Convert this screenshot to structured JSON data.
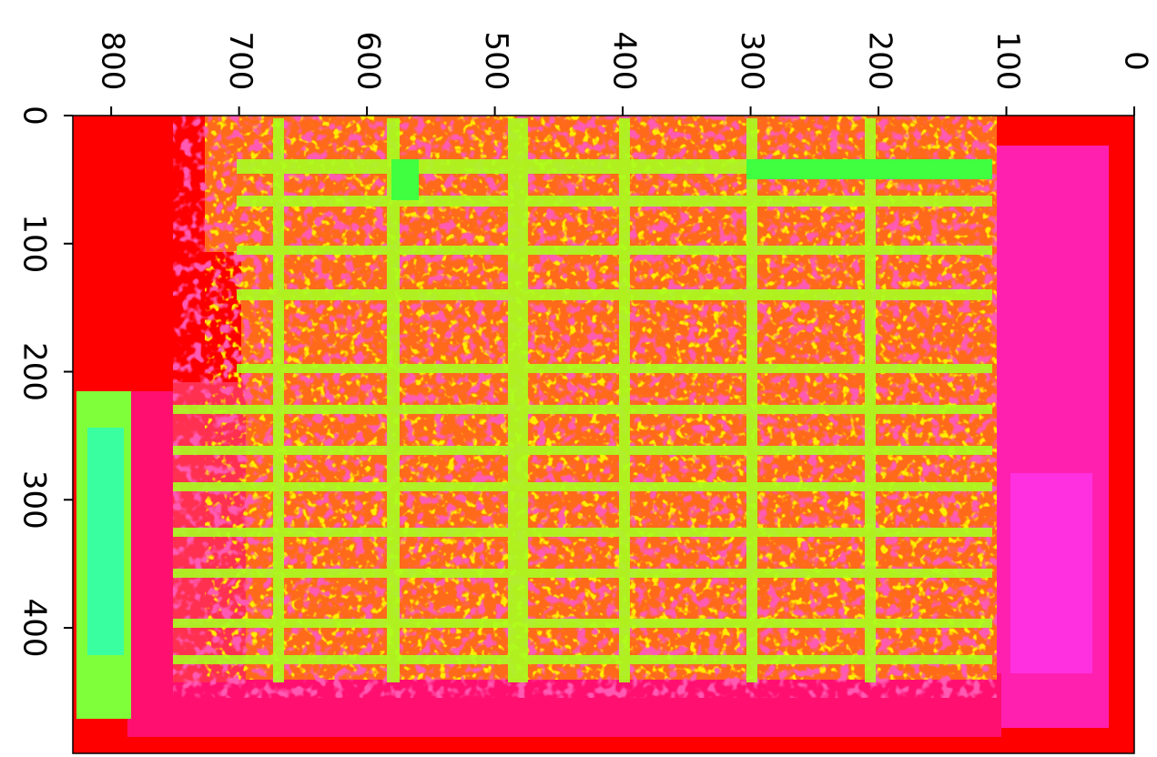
{
  "chart_data": {
    "type": "image",
    "xlim": [
      0,
      830
    ],
    "ylim": [
      0,
      498
    ],
    "xticks": [
      0,
      100,
      200,
      300,
      400,
      500,
      600,
      700,
      800
    ],
    "yticks": [
      0,
      100,
      200,
      300,
      400
    ],
    "x_reversed": true,
    "y_reversed": true,
    "x_axis_side": "top"
  }
}
